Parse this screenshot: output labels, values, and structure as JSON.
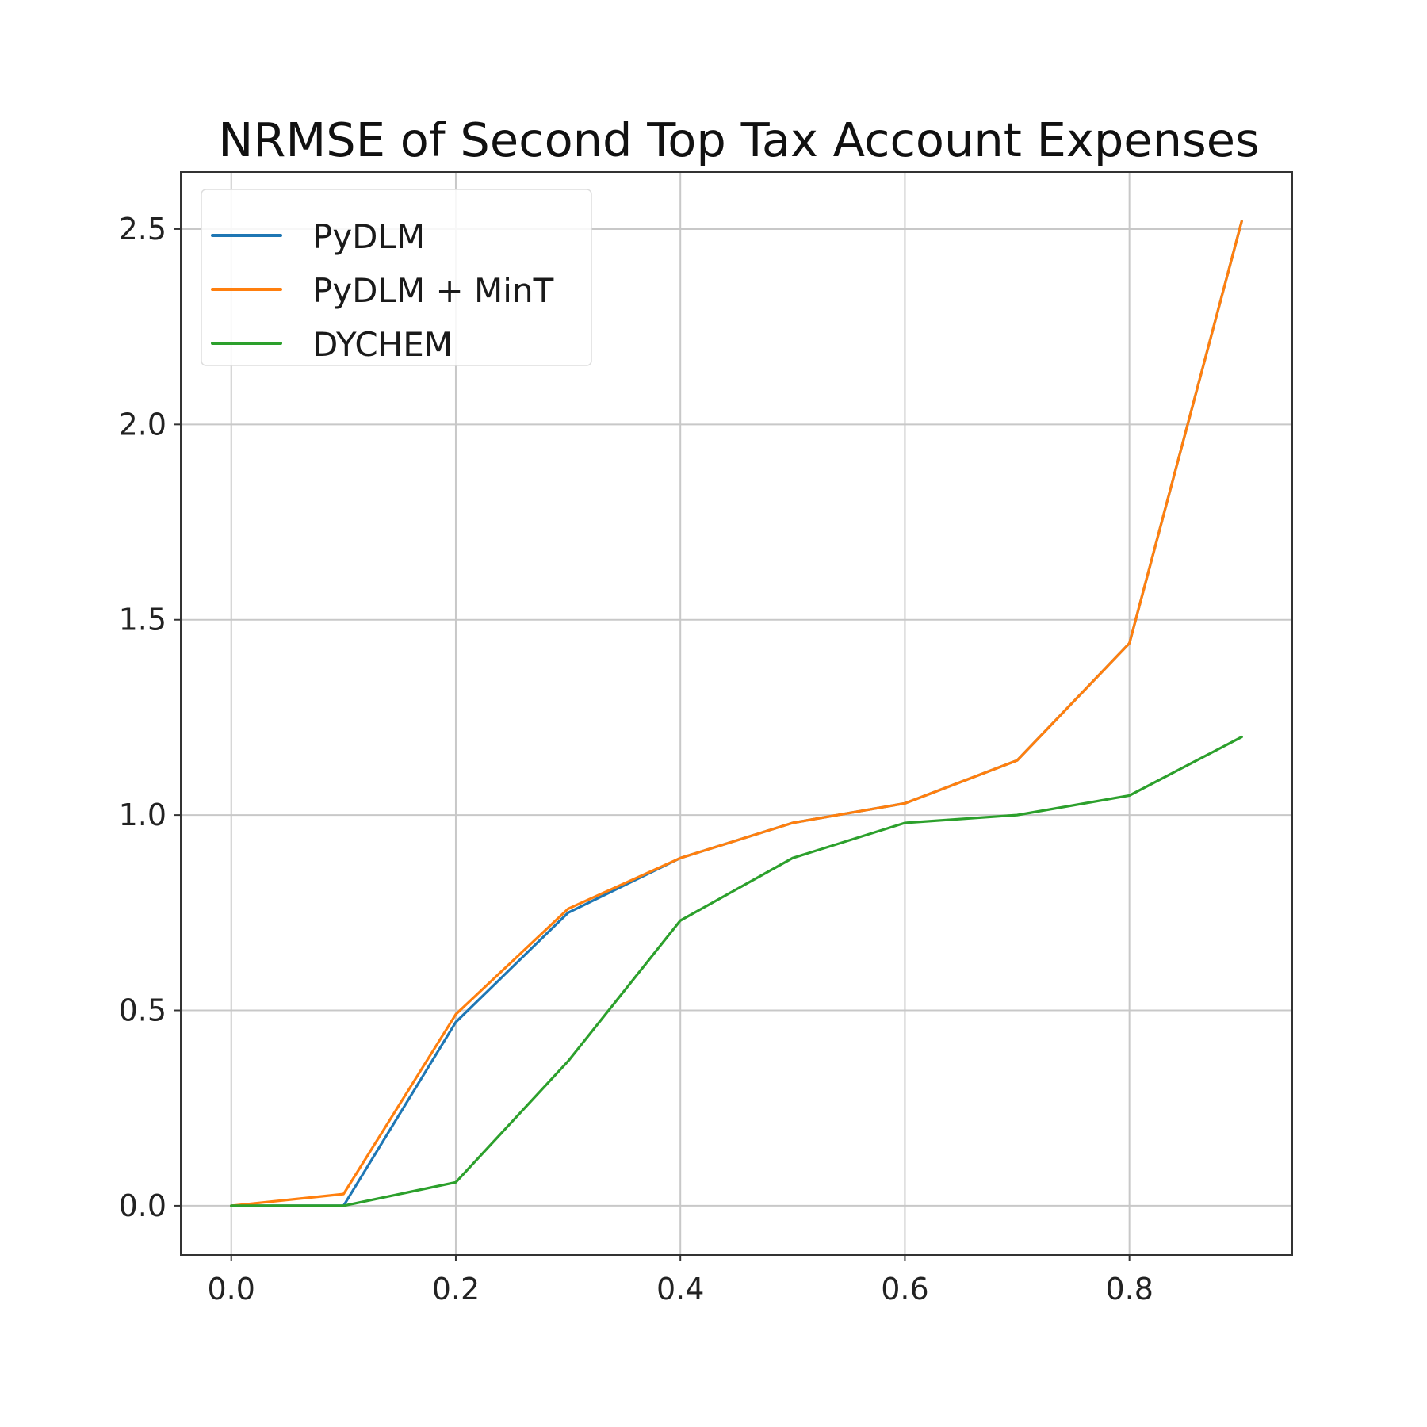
{
  "chart_data": {
    "type": "line",
    "title": "NRMSE of Second Top Tax Account Expenses",
    "xlabel": "",
    "ylabel": "",
    "x": [
      0.0,
      0.1,
      0.2,
      0.3,
      0.4,
      0.5,
      0.6,
      0.7,
      0.8,
      0.9
    ],
    "series": [
      {
        "name": "PyDLM",
        "color": "#1f77b4",
        "values": [
          0.0,
          0.0,
          0.47,
          0.75,
          0.89,
          0.98,
          1.03,
          1.14,
          1.44,
          2.52
        ]
      },
      {
        "name": "PyDLM + MinT",
        "color": "#ff7f0e",
        "values": [
          0.0,
          0.03,
          0.49,
          0.76,
          0.89,
          0.98,
          1.03,
          1.14,
          1.44,
          2.52
        ]
      },
      {
        "name": "DYCHEM",
        "color": "#2ca02c",
        "values": [
          0.0,
          0.0,
          0.06,
          0.37,
          0.73,
          0.89,
          0.98,
          1.0,
          1.05,
          1.2
        ]
      }
    ],
    "xlim": [
      -0.045,
      0.945
    ],
    "ylim": [
      -0.126,
      2.646
    ],
    "xticks": [
      "0.0",
      "0.2",
      "0.4",
      "0.6",
      "0.8"
    ],
    "xtick_values": [
      0.0,
      0.2,
      0.4,
      0.6,
      0.8
    ],
    "yticks": [
      "0.0",
      "0.5",
      "1.0",
      "1.5",
      "2.0",
      "2.5"
    ],
    "ytick_values": [
      0.0,
      0.5,
      1.0,
      1.5,
      2.0,
      2.5
    ],
    "grid": true,
    "legend_position": "top-left"
  }
}
